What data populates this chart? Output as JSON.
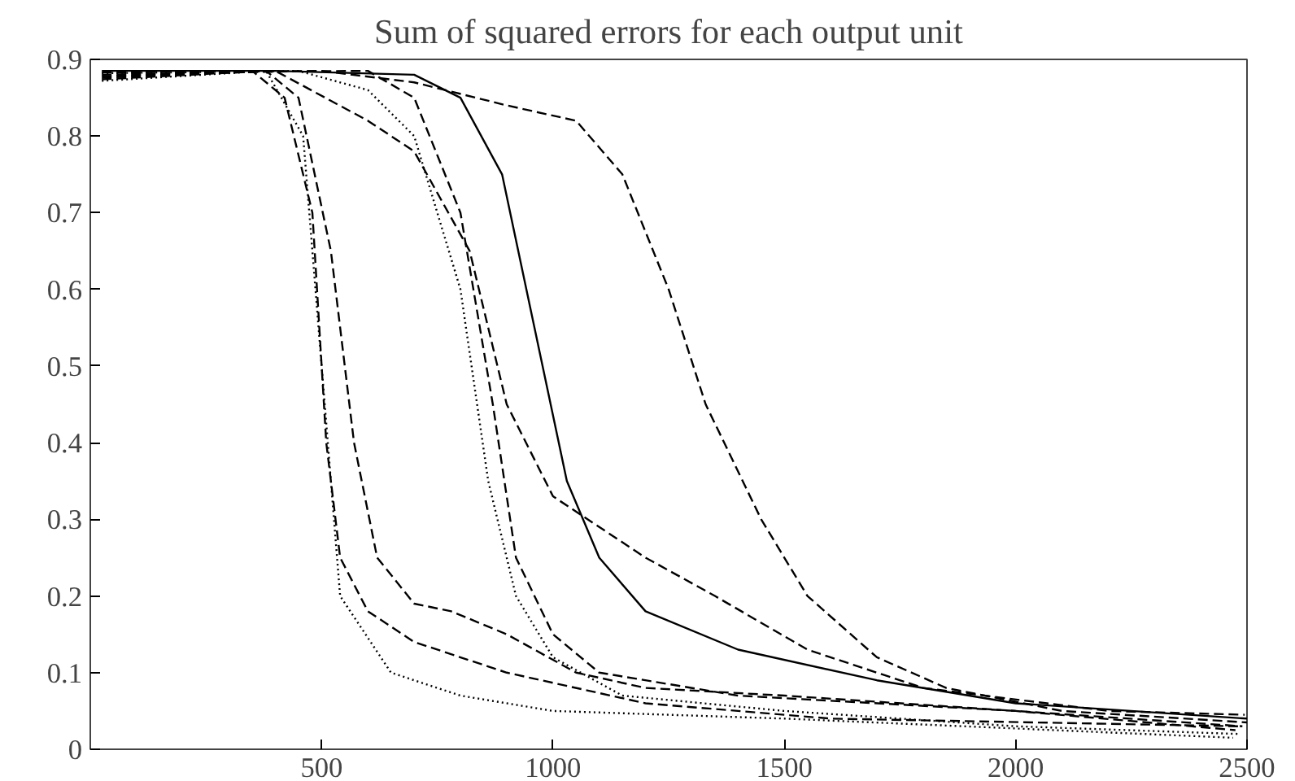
{
  "chart_data": {
    "type": "line",
    "title": "Sum of squared errors for each output unit",
    "xlim": [
      0,
      2500
    ],
    "ylim": [
      0,
      0.9
    ],
    "xticks": [
      500,
      1000,
      1500,
      2000,
      2500
    ],
    "yticks": [
      0,
      0.1,
      0.2,
      0.3,
      0.4,
      0.5,
      0.6,
      0.7,
      0.8,
      0.9
    ],
    "grid": false,
    "marker": "none",
    "series": [
      {
        "color": "#000000",
        "line_style": "solid",
        "x": [
          25,
          400,
          700,
          800,
          890,
          960,
          1030,
          1100,
          1200,
          1400,
          1700,
          2000,
          2500
        ],
        "values": [
          0.885,
          0.885,
          0.88,
          0.85,
          0.75,
          0.55,
          0.35,
          0.25,
          0.18,
          0.13,
          0.09,
          0.06,
          0.04
        ]
      },
      {
        "color": "#000000",
        "line_style": "dashed",
        "x": [
          25,
          500,
          700,
          900,
          1050,
          1150,
          1250,
          1330,
          1450,
          1550,
          1700,
          1850,
          2100,
          2500
        ],
        "values": [
          0.88,
          0.885,
          0.87,
          0.84,
          0.82,
          0.75,
          0.6,
          0.45,
          0.3,
          0.2,
          0.12,
          0.08,
          0.05,
          0.035
        ]
      },
      {
        "color": "#000000",
        "line_style": "dashed",
        "x": [
          25,
          600,
          700,
          800,
          870,
          920,
          1000,
          1100,
          1400,
          2000,
          2490
        ],
        "values": [
          0.883,
          0.885,
          0.85,
          0.7,
          0.45,
          0.25,
          0.15,
          0.1,
          0.07,
          0.05,
          0.03
        ]
      },
      {
        "color": "#000000",
        "line_style": "dotted",
        "x": [
          25,
          450,
          600,
          700,
          800,
          860,
          920,
          1000,
          1150,
          1500,
          2000,
          2480
        ],
        "values": [
          0.882,
          0.885,
          0.86,
          0.8,
          0.6,
          0.35,
          0.2,
          0.12,
          0.07,
          0.05,
          0.03,
          0.02
        ]
      },
      {
        "color": "#000000",
        "line_style": "dashed",
        "x": [
          25,
          400,
          600,
          700,
          820,
          900,
          1000,
          1200,
          1350,
          1550,
          1800,
          2200,
          2495
        ],
        "values": [
          0.878,
          0.885,
          0.82,
          0.78,
          0.65,
          0.45,
          0.33,
          0.25,
          0.2,
          0.13,
          0.08,
          0.05,
          0.045
        ]
      },
      {
        "color": "#000000",
        "line_style": "dashed",
        "x": [
          25,
          350,
          420,
          480,
          510,
          540,
          600,
          700,
          900,
          1200,
          1600,
          2485
        ],
        "values": [
          0.876,
          0.885,
          0.85,
          0.7,
          0.4,
          0.25,
          0.18,
          0.14,
          0.1,
          0.06,
          0.04,
          0.03
        ]
      },
      {
        "color": "#000000",
        "line_style": "dashed",
        "x": [
          25,
          380,
          450,
          520,
          570,
          620,
          700,
          780,
          900,
          1050,
          1200,
          1500,
          2000,
          2475
        ],
        "values": [
          0.874,
          0.885,
          0.85,
          0.65,
          0.4,
          0.25,
          0.19,
          0.18,
          0.15,
          0.1,
          0.08,
          0.07,
          0.05,
          0.025
        ]
      },
      {
        "color": "#000000",
        "line_style": "dotted",
        "x": [
          25,
          380,
          460,
          500,
          540,
          650,
          800,
          1000,
          1500,
          2470
        ],
        "values": [
          0.872,
          0.885,
          0.8,
          0.5,
          0.2,
          0.1,
          0.07,
          0.05,
          0.04,
          0.015
        ]
      }
    ]
  }
}
